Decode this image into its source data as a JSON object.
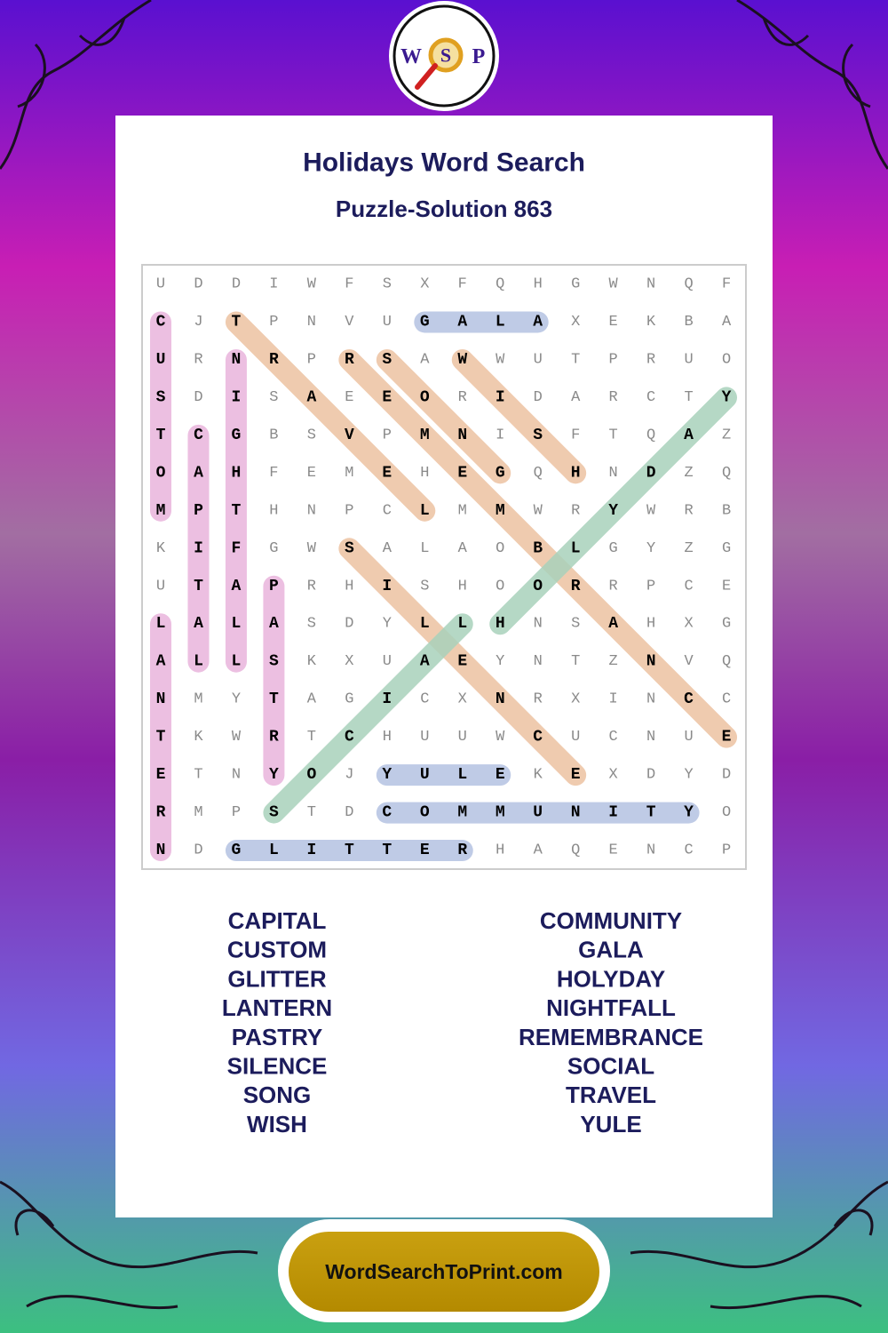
{
  "logo": [
    "W",
    "S",
    "P"
  ],
  "header": {
    "title": "Holidays Word Search",
    "subtitle": "Puzzle-Solution 863"
  },
  "grid": [
    [
      "U",
      "D",
      "D",
      "I",
      "W",
      "F",
      "S",
      "X",
      "F",
      "Q",
      "H",
      "G",
      "W",
      "N",
      "Q",
      "F"
    ],
    [
      "C",
      "J",
      "T",
      "P",
      "N",
      "V",
      "U",
      "G",
      "A",
      "L",
      "A",
      "X",
      "E",
      "K",
      "B",
      "A"
    ],
    [
      "U",
      "R",
      "N",
      "R",
      "P",
      "R",
      "S",
      "A",
      "W",
      "W",
      "U",
      "T",
      "P",
      "R",
      "U",
      "O"
    ],
    [
      "S",
      "D",
      "I",
      "S",
      "A",
      "E",
      "E",
      "O",
      "R",
      "I",
      "D",
      "A",
      "R",
      "C",
      "T",
      "Y"
    ],
    [
      "T",
      "C",
      "G",
      "B",
      "S",
      "V",
      "P",
      "M",
      "N",
      "I",
      "S",
      "F",
      "T",
      "Q",
      "A",
      "Z"
    ],
    [
      "O",
      "A",
      "H",
      "F",
      "E",
      "M",
      "E",
      "H",
      "E",
      "G",
      "Q",
      "H",
      "N",
      "D",
      "Z",
      "Q"
    ],
    [
      "M",
      "P",
      "T",
      "H",
      "N",
      "P",
      "C",
      "L",
      "M",
      "M",
      "W",
      "R",
      "Y",
      "W",
      "R",
      "B"
    ],
    [
      "K",
      "I",
      "F",
      "G",
      "W",
      "S",
      "A",
      "L",
      "A",
      "O",
      "B",
      "L",
      "G",
      "Y",
      "Z",
      "G"
    ],
    [
      "U",
      "T",
      "A",
      "P",
      "R",
      "H",
      "I",
      "S",
      "H",
      "O",
      "O",
      "R",
      "R",
      "P",
      "C",
      "E"
    ],
    [
      "L",
      "A",
      "L",
      "A",
      "S",
      "D",
      "Y",
      "L",
      "L",
      "H",
      "N",
      "S",
      "A",
      "H",
      "X",
      "G"
    ],
    [
      "A",
      "L",
      "L",
      "S",
      "K",
      "X",
      "U",
      "A",
      "E",
      "Y",
      "N",
      "T",
      "Z",
      "N",
      "V",
      "Q"
    ],
    [
      "N",
      "M",
      "Y",
      "T",
      "A",
      "G",
      "I",
      "C",
      "X",
      "N",
      "R",
      "X",
      "I",
      "N",
      "C",
      "C"
    ],
    [
      "T",
      "K",
      "W",
      "R",
      "T",
      "C",
      "H",
      "U",
      "U",
      "W",
      "C",
      "U",
      "C",
      "N",
      "U",
      "E"
    ],
    [
      "E",
      "T",
      "N",
      "Y",
      "O",
      "J",
      "Y",
      "U",
      "L",
      "E",
      "K",
      "E",
      "X",
      "D",
      "Y",
      "D"
    ],
    [
      "R",
      "M",
      "P",
      "S",
      "T",
      "D",
      "C",
      "O",
      "M",
      "M",
      "U",
      "N",
      "I",
      "T",
      "Y",
      "O"
    ],
    [
      "N",
      "D",
      "G",
      "L",
      "I",
      "T",
      "T",
      "E",
      "R",
      "H",
      "A",
      "Q",
      "E",
      "N",
      "C",
      "P"
    ]
  ],
  "words": {
    "left": [
      "CAPITAL",
      "CUSTOM",
      "GLITTER",
      "LANTERN",
      "PASTRY",
      "SILENCE",
      "SONG",
      "WISH"
    ],
    "right": [
      "COMMUNITY",
      "GALA",
      "HOLYDAY",
      "NIGHTFALL",
      "REMEMBRANCE",
      "SOCIAL",
      "TRAVEL",
      "YULE"
    ]
  },
  "footer": {
    "link": "WordSearchToPrint.com"
  }
}
